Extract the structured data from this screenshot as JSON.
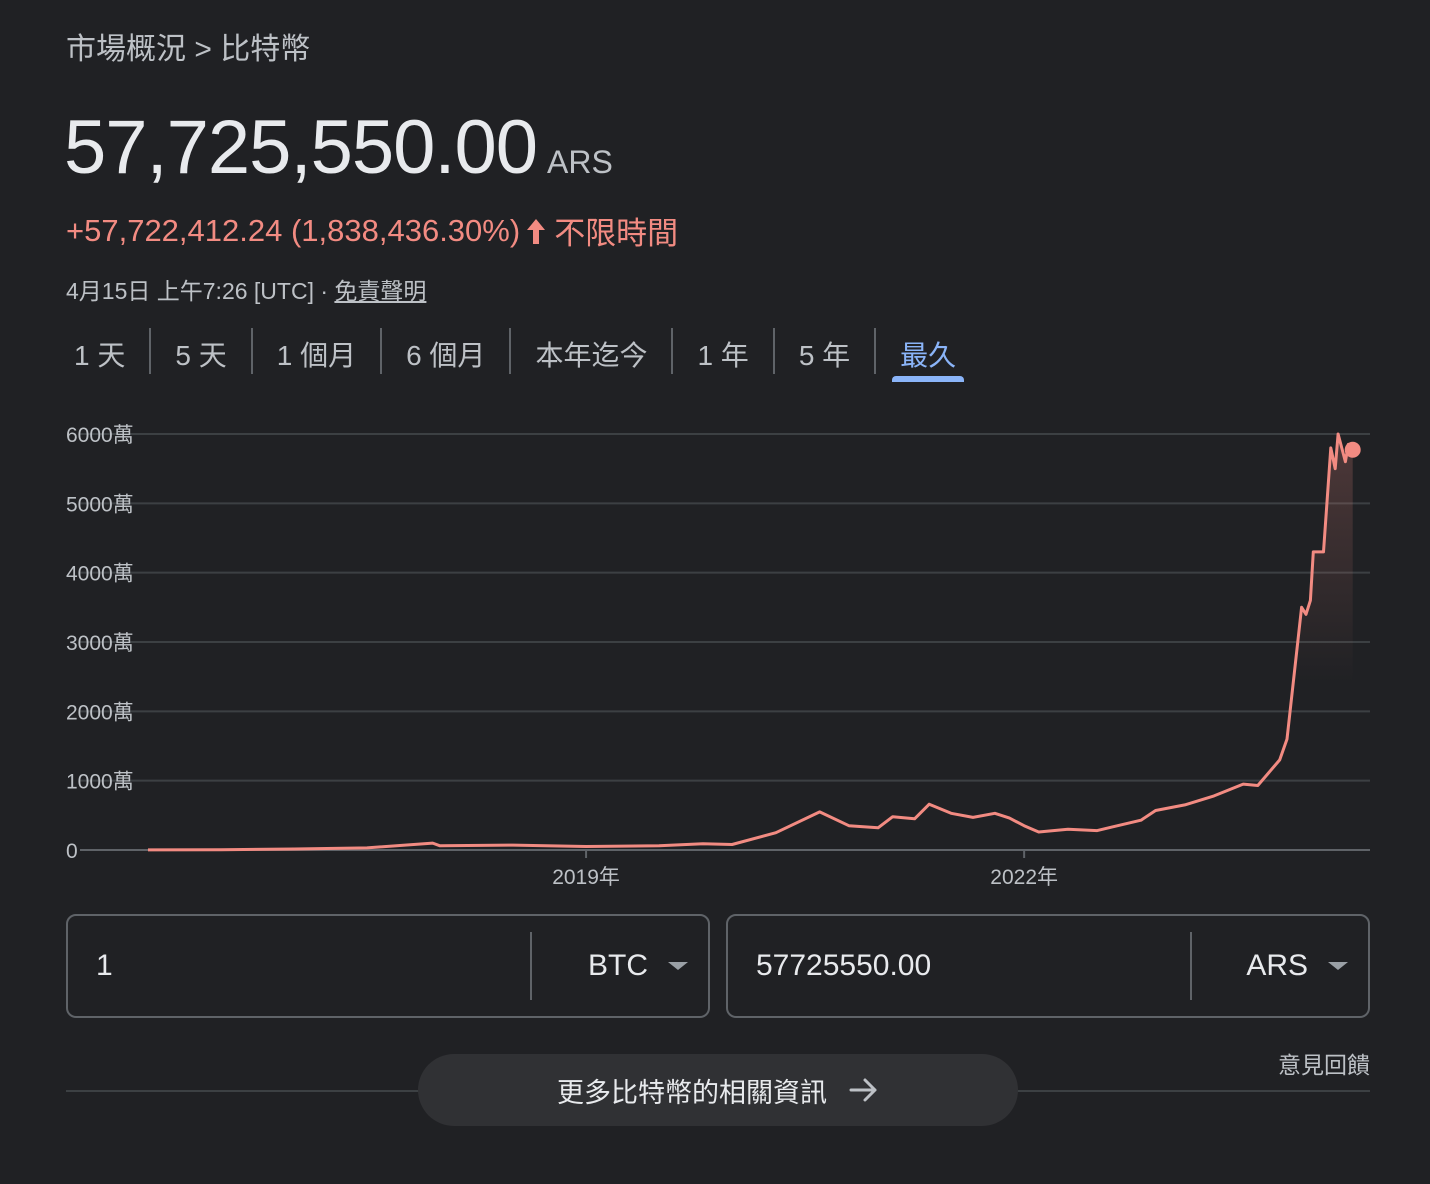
{
  "breadcrumb": {
    "parent": "市場概況",
    "separator": ">",
    "current": "比特幣"
  },
  "price": {
    "value": "57,725,550.00",
    "currency": "ARS"
  },
  "change": {
    "text": "+57,722,412.24 (1,838,436.30%)",
    "period": "不限時間"
  },
  "meta": {
    "timestamp": "4月15日 上午7:26 [UTC]",
    "separator": "·",
    "disclaimer": "免責聲明"
  },
  "tabs": [
    {
      "label": "1 天",
      "active": false
    },
    {
      "label": "5 天",
      "active": false
    },
    {
      "label": "1 個月",
      "active": false
    },
    {
      "label": "6 個月",
      "active": false
    },
    {
      "label": "本年迄今",
      "active": false
    },
    {
      "label": "1 年",
      "active": false
    },
    {
      "label": "5 年",
      "active": false
    },
    {
      "label": "最久",
      "active": true
    }
  ],
  "colors": {
    "line": "#f28b82",
    "accent": "#8ab4f8",
    "background": "#202124"
  },
  "chart_data": {
    "type": "line",
    "ylim": [
      0,
      60000000
    ],
    "ytick_values": [
      0,
      10000000,
      20000000,
      30000000,
      40000000,
      50000000,
      60000000
    ],
    "ytick_labels": [
      "0",
      "1000萬",
      "2000萬",
      "3000萬",
      "4000萬",
      "5000萬",
      "6000萬"
    ],
    "xlim": [
      2016.0,
      2024.3
    ],
    "xtick_values": [
      2019,
      2022
    ],
    "xtick_labels": [
      "2019年",
      "2022年"
    ],
    "grid": true,
    "series": [
      {
        "x": [
          2016.0,
          2016.5,
          2017.0,
          2017.5,
          2017.95,
          2018.0,
          2018.5,
          2019.0,
          2019.5,
          2019.8,
          2020.0,
          2020.3,
          2020.6,
          2020.8,
          2021.0,
          2021.1,
          2021.25,
          2021.35,
          2021.5,
          2021.65,
          2021.8,
          2021.9,
          2022.0,
          2022.1,
          2022.3,
          2022.5,
          2022.6,
          2022.8,
          2022.9,
          2023.1,
          2023.3,
          2023.5,
          2023.6,
          2023.75,
          2023.8,
          2023.9,
          2023.93,
          2023.96,
          2023.98,
          2024.05,
          2024.1,
          2024.13,
          2024.15,
          2024.2,
          2024.22,
          2024.25
        ],
        "y": [
          20000,
          50000,
          150000,
          300000,
          1000000,
          600000,
          700000,
          500000,
          600000,
          900000,
          800000,
          2500000,
          5500000,
          3500000,
          3200000,
          4800000,
          4500000,
          6600000,
          5300000,
          4700000,
          5300000,
          4600000,
          3500000,
          2600000,
          3000000,
          2800000,
          3300000,
          4300000,
          5700000,
          6500000,
          7800000,
          9500000,
          9300000,
          13000000,
          16000000,
          35000000,
          34000000,
          36000000,
          43000000,
          43000000,
          58000000,
          55000000,
          60000000,
          56000000,
          58500000,
          57725550
        ]
      }
    ]
  },
  "converter": {
    "from": {
      "value": "1",
      "currency": "BTC"
    },
    "to": {
      "value": "57725550.00",
      "currency": "ARS"
    }
  },
  "feedback": "意見回饋",
  "more_button": "更多比特幣的相關資訊"
}
